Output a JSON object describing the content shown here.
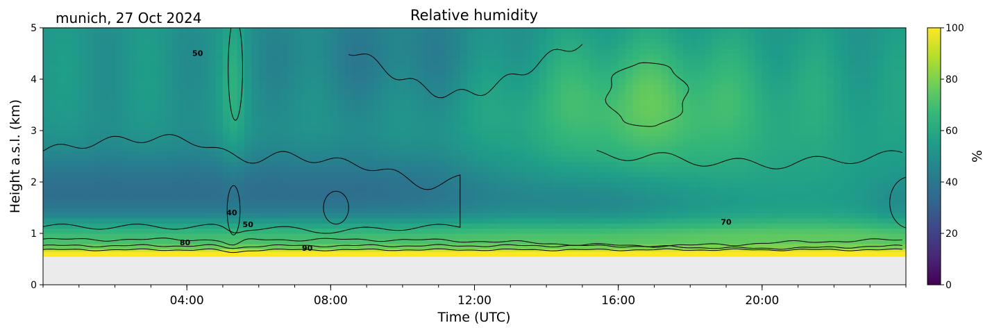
{
  "chart_data": {
    "type": "heatmap",
    "title": "Relative humidity",
    "subtitle": "munich, 27 Oct 2024",
    "xlabel": "Time (UTC)",
    "ylabel": "Height a.s.l. (km)",
    "xlim_hours": [
      0,
      24
    ],
    "ylim": [
      0,
      5
    ],
    "x_ticks": [
      {
        "hour": 4,
        "label": "04:00"
      },
      {
        "hour": 8,
        "label": "08:00"
      },
      {
        "hour": 12,
        "label": "12:00"
      },
      {
        "hour": 16,
        "label": "16:00"
      },
      {
        "hour": 20,
        "label": "20:00"
      }
    ],
    "y_ticks": [
      0,
      1,
      2,
      3,
      4,
      5
    ],
    "ground_height_km": 0.55,
    "colorbar": {
      "label": "%",
      "range": [
        0,
        100
      ],
      "ticks": [
        0,
        20,
        40,
        60,
        80,
        100
      ],
      "colormap": [
        "#440154",
        "#482878",
        "#3e4989",
        "#31688e",
        "#26828e",
        "#1f9e89",
        "#35b779",
        "#6ece58",
        "#b5de2b",
        "#fde725"
      ]
    },
    "contour_levels": [
      40,
      50,
      60,
      70,
      80,
      90
    ],
    "contour_labels": [
      {
        "text": "50",
        "hour": 5.7,
        "height": 1.12
      },
      {
        "text": "80",
        "hour": 3.95,
        "height": 0.77
      },
      {
        "text": "90",
        "hour": 7.35,
        "height": 0.66
      },
      {
        "text": "70",
        "hour": 19.0,
        "height": 1.17
      },
      {
        "text": "40",
        "hour": 5.25,
        "height": 1.35
      },
      {
        "text": "50",
        "hour": 4.3,
        "height": 4.45
      }
    ],
    "grid": false,
    "colors": {
      "ground": "#ebebeb",
      "contour": "#000000",
      "saturated": "#fde725"
    }
  }
}
